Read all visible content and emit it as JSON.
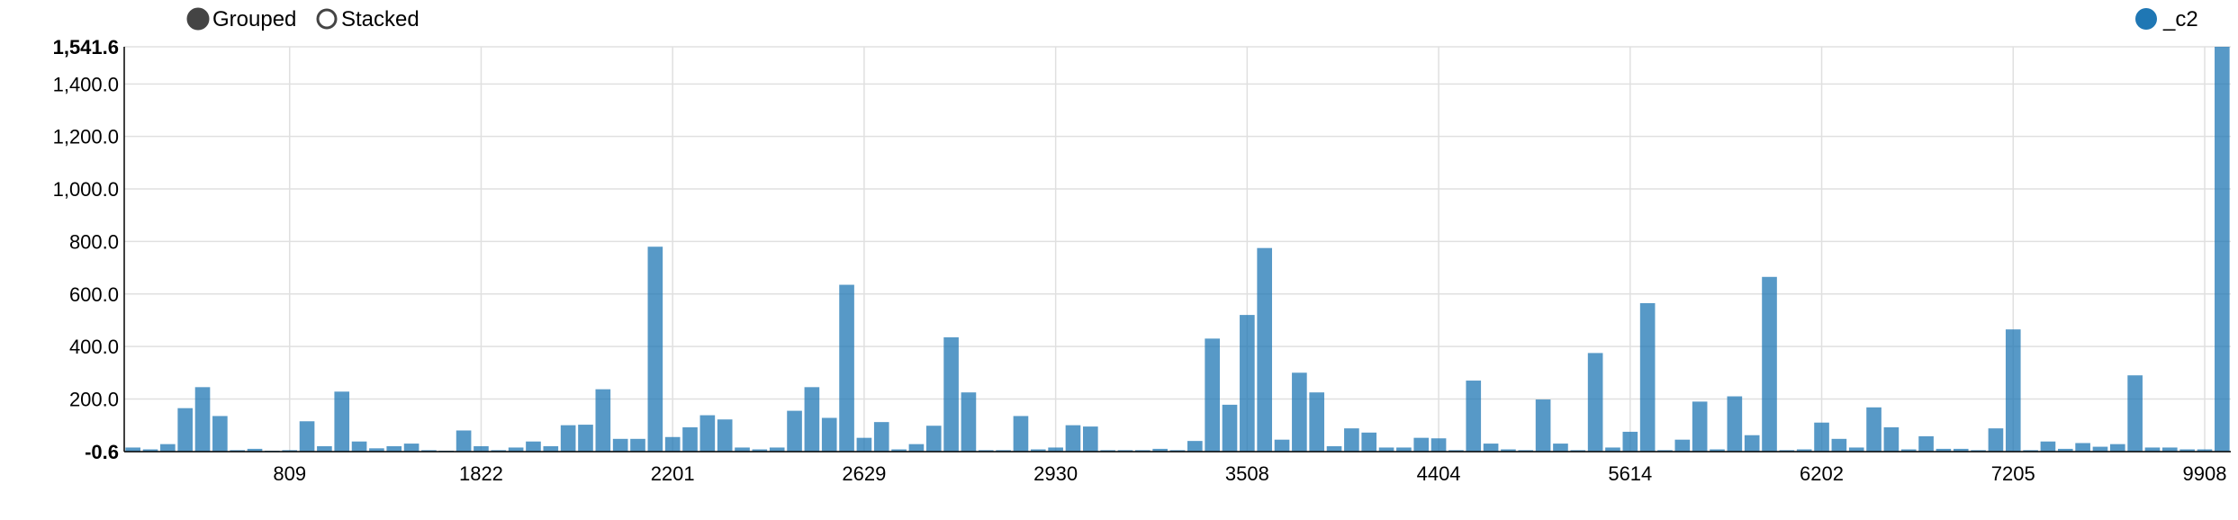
{
  "controls": {
    "grouped_label": "Grouped",
    "stacked_label": "Stacked",
    "selected": "Grouped"
  },
  "legend": {
    "label": "_c2",
    "color": "#1f77b4",
    "placement": "top-right"
  },
  "chart_data": {
    "type": "bar",
    "ylim": [
      -0.6,
      1541.6
    ],
    "y_ticks": [
      "-0.6",
      "200.0",
      "400.0",
      "600.0",
      "800.0",
      "1,000.0",
      "1,200.0",
      "1,400.0",
      "1,541.6"
    ],
    "y_tick_values": [
      -0.6,
      200,
      400,
      600,
      800,
      1000,
      1200,
      1400,
      1541.6
    ],
    "x_tick_labels": [
      "809",
      "1822",
      "2201",
      "2629",
      "2930",
      "3508",
      "4404",
      "5614",
      "6202",
      "7205",
      "9908"
    ],
    "x_tick_bar_index": [
      9,
      20,
      31,
      42,
      53,
      64,
      75,
      86,
      97,
      108,
      119
    ],
    "grid": true,
    "series": [
      {
        "name": "_c2",
        "color": "#1f77b4",
        "values": [
          15,
          8,
          28,
          165,
          245,
          135,
          5,
          10,
          3,
          5,
          115,
          20,
          228,
          38,
          12,
          20,
          30,
          5,
          3,
          80,
          20,
          5,
          15,
          38,
          20,
          100,
          102,
          237,
          48,
          48,
          780,
          55,
          92,
          138,
          122,
          15,
          8,
          15,
          155,
          245,
          128,
          635,
          52,
          112,
          8,
          28,
          98,
          435,
          225,
          5,
          5,
          135,
          8,
          15,
          100,
          95,
          5,
          5,
          5,
          10,
          5,
          40,
          430,
          178,
          520,
          775,
          45,
          300,
          225,
          20,
          88,
          72,
          15,
          15,
          52,
          50,
          5,
          270,
          30,
          8,
          5,
          198,
          30,
          5,
          375,
          15,
          75,
          565,
          5,
          45,
          190,
          8,
          210,
          62,
          665,
          5,
          8,
          110,
          48,
          15,
          168,
          92,
          8,
          58,
          10,
          10,
          5,
          88,
          465,
          5,
          38,
          10,
          32,
          18,
          28,
          290,
          15,
          15,
          8,
          8,
          1541.6
        ]
      }
    ]
  }
}
